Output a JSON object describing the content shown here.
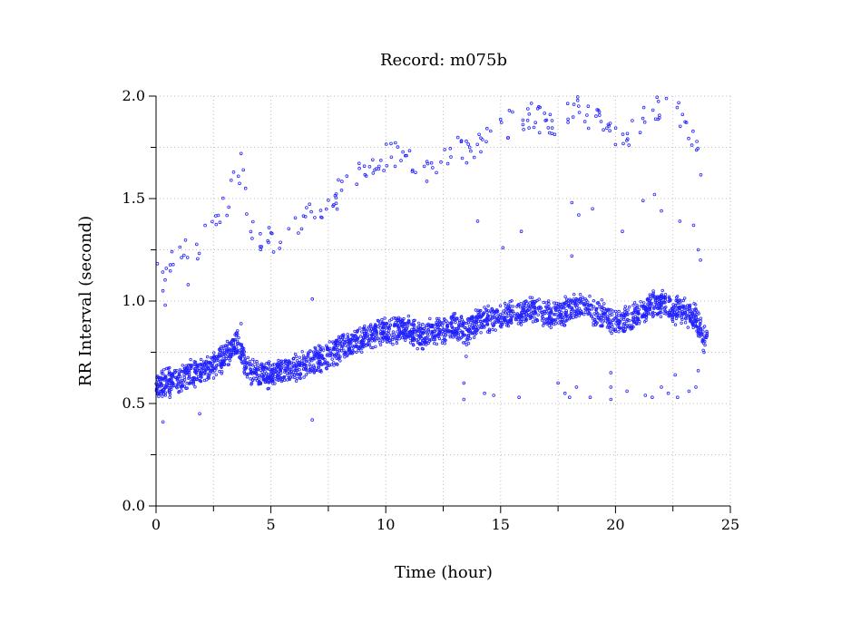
{
  "chart_data": {
    "type": "scatter",
    "title": "Record:  m075b",
    "xlabel": "Time (hour)",
    "ylabel": "RR Interval (second)",
    "xlim": [
      0,
      25
    ],
    "ylim": [
      0,
      2
    ],
    "x_ticks": [
      0,
      5,
      10,
      15,
      20,
      25
    ],
    "x_tick_labels": [
      "0",
      "5",
      "10",
      "15",
      "20",
      "25"
    ],
    "y_ticks": [
      0,
      0.5,
      1,
      1.5,
      2
    ],
    "y_tick_labels": [
      "0.0",
      "0.5",
      "1.0",
      "1.5",
      "2.0"
    ],
    "grid": true,
    "marker": "circle",
    "color": "#2222ff",
    "main_band": [
      [
        0.0,
        0.58
      ],
      [
        0.5,
        0.61
      ],
      [
        1.0,
        0.62
      ],
      [
        1.5,
        0.64
      ],
      [
        2.0,
        0.66
      ],
      [
        2.5,
        0.69
      ],
      [
        3.0,
        0.73
      ],
      [
        3.5,
        0.8
      ],
      [
        3.8,
        0.72
      ],
      [
        4.0,
        0.66
      ],
      [
        4.5,
        0.65
      ],
      [
        5.0,
        0.64
      ],
      [
        5.5,
        0.66
      ],
      [
        6.0,
        0.67
      ],
      [
        6.5,
        0.69
      ],
      [
        7.0,
        0.71
      ],
      [
        7.5,
        0.73
      ],
      [
        8.0,
        0.77
      ],
      [
        8.5,
        0.79
      ],
      [
        9.0,
        0.81
      ],
      [
        9.5,
        0.84
      ],
      [
        10.0,
        0.85
      ],
      [
        10.5,
        0.86
      ],
      [
        11.0,
        0.86
      ],
      [
        11.5,
        0.83
      ],
      [
        12.0,
        0.85
      ],
      [
        12.5,
        0.86
      ],
      [
        13.0,
        0.88
      ],
      [
        13.5,
        0.85
      ],
      [
        14.0,
        0.9
      ],
      [
        14.5,
        0.91
      ],
      [
        15.0,
        0.92
      ],
      [
        15.5,
        0.93
      ],
      [
        16.0,
        0.95
      ],
      [
        16.5,
        0.96
      ],
      [
        17.0,
        0.93
      ],
      [
        17.5,
        0.94
      ],
      [
        18.0,
        0.96
      ],
      [
        18.5,
        0.98
      ],
      [
        19.0,
        0.95
      ],
      [
        19.5,
        0.93
      ],
      [
        20.0,
        0.9
      ],
      [
        20.5,
        0.91
      ],
      [
        21.0,
        0.93
      ],
      [
        21.5,
        0.98
      ],
      [
        22.0,
        0.99
      ],
      [
        22.5,
        0.96
      ],
      [
        23.0,
        0.95
      ],
      [
        23.5,
        0.92
      ],
      [
        23.8,
        0.82
      ],
      [
        24.0,
        0.8
      ]
    ],
    "upper_band": [
      [
        0.0,
        1.12
      ],
      [
        0.5,
        1.18
      ],
      [
        1.0,
        1.21
      ],
      [
        1.5,
        1.25
      ],
      [
        2.0,
        1.29
      ],
      [
        2.5,
        1.35
      ],
      [
        3.0,
        1.45
      ],
      [
        3.5,
        1.6
      ],
      [
        3.8,
        1.45
      ],
      [
        4.0,
        1.36
      ],
      [
        4.5,
        1.3
      ],
      [
        5.0,
        1.3
      ],
      [
        5.5,
        1.33
      ],
      [
        6.0,
        1.36
      ],
      [
        6.5,
        1.4
      ],
      [
        7.0,
        1.44
      ],
      [
        7.5,
        1.47
      ],
      [
        8.0,
        1.53
      ],
      [
        8.5,
        1.58
      ],
      [
        9.0,
        1.62
      ],
      [
        9.5,
        1.67
      ],
      [
        10.0,
        1.7
      ],
      [
        10.5,
        1.71
      ],
      [
        11.0,
        1.72
      ],
      [
        11.5,
        1.63
      ],
      [
        12.0,
        1.67
      ],
      [
        12.5,
        1.7
      ],
      [
        13.0,
        1.75
      ],
      [
        13.5,
        1.72
      ],
      [
        14.0,
        1.78
      ],
      [
        14.5,
        1.81
      ],
      [
        15.0,
        1.84
      ],
      [
        15.5,
        1.87
      ],
      [
        16.0,
        1.9
      ],
      [
        16.5,
        1.91
      ],
      [
        17.0,
        1.85
      ],
      [
        17.5,
        1.87
      ],
      [
        18.0,
        1.9
      ],
      [
        18.5,
        1.94
      ],
      [
        19.0,
        1.89
      ],
      [
        19.5,
        1.85
      ],
      [
        20.0,
        1.82
      ],
      [
        20.5,
        1.82
      ],
      [
        21.0,
        1.86
      ],
      [
        21.5,
        1.94
      ],
      [
        22.0,
        1.96
      ],
      [
        22.5,
        1.92
      ],
      [
        23.0,
        1.9
      ],
      [
        23.5,
        1.75
      ],
      [
        23.8,
        1.55
      ]
    ],
    "outliers": [
      [
        0.3,
        0.41
      ],
      [
        0.4,
        0.98
      ],
      [
        0.3,
        1.05
      ],
      [
        0.6,
        0.53
      ],
      [
        1.5,
        0.6
      ],
      [
        1.4,
        1.08
      ],
      [
        1.9,
        0.45
      ],
      [
        3.7,
        1.72
      ],
      [
        3.8,
        1.64
      ],
      [
        3.9,
        1.55
      ],
      [
        6.8,
        1.01
      ],
      [
        6.8,
        0.42
      ],
      [
        14.0,
        1.39
      ],
      [
        15.1,
        1.26
      ],
      [
        15.9,
        1.34
      ],
      [
        18.1,
        1.22
      ],
      [
        18.1,
        1.48
      ],
      [
        18.4,
        1.42
      ],
      [
        19.0,
        1.45
      ],
      [
        20.3,
        1.34
      ],
      [
        21.2,
        1.49
      ],
      [
        21.7,
        1.52
      ],
      [
        22.0,
        1.44
      ],
      [
        22.8,
        1.39
      ],
      [
        23.4,
        1.37
      ],
      [
        23.6,
        1.25
      ],
      [
        23.7,
        1.2
      ],
      [
        13.4,
        0.52
      ],
      [
        13.4,
        0.6
      ],
      [
        14.3,
        0.55
      ],
      [
        14.7,
        0.54
      ],
      [
        15.8,
        0.53
      ],
      [
        17.5,
        0.6
      ],
      [
        17.8,
        0.55
      ],
      [
        18.0,
        0.53
      ],
      [
        18.3,
        0.58
      ],
      [
        18.9,
        0.53
      ],
      [
        19.8,
        0.52
      ],
      [
        19.8,
        0.58
      ],
      [
        19.8,
        0.65
      ],
      [
        20.5,
        0.56
      ],
      [
        21.3,
        0.54
      ],
      [
        21.6,
        0.53
      ],
      [
        22.0,
        0.58
      ],
      [
        22.3,
        0.55
      ],
      [
        22.6,
        0.64
      ],
      [
        22.7,
        0.53
      ],
      [
        23.2,
        0.56
      ],
      [
        23.5,
        0.58
      ],
      [
        23.6,
        0.66
      ],
      [
        3.7,
        0.89
      ],
      [
        13.5,
        0.73
      ]
    ]
  }
}
